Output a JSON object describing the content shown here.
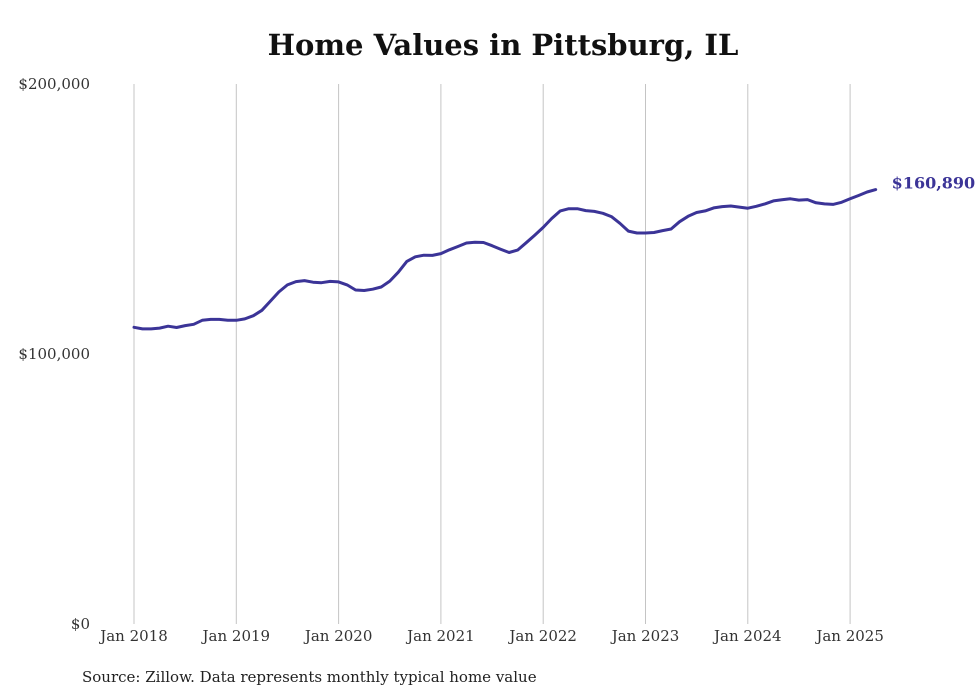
{
  "chart_data": {
    "type": "line",
    "title": "Home Values in Pittsburg, IL",
    "xlabel": "",
    "ylabel": "",
    "x_tick_labels": [
      "Jan 2018",
      "Jan 2019",
      "Jan 2020",
      "Jan 2021",
      "Jan 2022",
      "Jan 2023",
      "Jan 2024",
      "Jan 2025"
    ],
    "y_tick_labels": [
      "$0",
      "$100,000",
      "$200,000"
    ],
    "ylim": [
      0,
      200000
    ],
    "xlim": [
      "2018-01",
      "2025-04"
    ],
    "grid": "vertical",
    "line_color": "#3b3497",
    "series": [
      {
        "dates": [
          "2018-01",
          "2018-02",
          "2018-03",
          "2018-04",
          "2018-05",
          "2018-06",
          "2018-07",
          "2018-08",
          "2018-09",
          "2018-10",
          "2018-11",
          "2018-12",
          "2019-01",
          "2019-02",
          "2019-03",
          "2019-04",
          "2019-05",
          "2019-06",
          "2019-07",
          "2019-08",
          "2019-09",
          "2019-10",
          "2019-11",
          "2019-12",
          "2020-01",
          "2020-02",
          "2020-03",
          "2020-04",
          "2020-05",
          "2020-06",
          "2020-07",
          "2020-08",
          "2020-09",
          "2020-10",
          "2020-11",
          "2020-12",
          "2021-01",
          "2021-02",
          "2021-03",
          "2021-04",
          "2021-05",
          "2021-06",
          "2021-07",
          "2021-08",
          "2021-09",
          "2021-10",
          "2021-11",
          "2021-12",
          "2022-01",
          "2022-02",
          "2022-03",
          "2022-04",
          "2022-05",
          "2022-06",
          "2022-07",
          "2022-08",
          "2022-09",
          "2022-10",
          "2022-11",
          "2022-12",
          "2023-01",
          "2023-02",
          "2023-03",
          "2023-04",
          "2023-05",
          "2023-06",
          "2023-07",
          "2023-08",
          "2023-09",
          "2023-10",
          "2023-11",
          "2023-12",
          "2024-01",
          "2024-02",
          "2024-03",
          "2024-04",
          "2024-05",
          "2024-06",
          "2024-07",
          "2024-08",
          "2024-09",
          "2024-10",
          "2024-11",
          "2024-12",
          "2025-01",
          "2025-02",
          "2025-03",
          "2025-04"
        ],
        "values": [
          109900,
          109300,
          109300,
          109600,
          110300,
          109800,
          110500,
          111000,
          112500,
          112800,
          112800,
          112500,
          112500,
          113000,
          114200,
          116200,
          119600,
          123000,
          125600,
          126800,
          127200,
          126600,
          126400,
          126900,
          126700,
          125600,
          123700,
          123500,
          124000,
          124800,
          127000,
          130300,
          134300,
          136000,
          136600,
          136500,
          137200,
          138600,
          139800,
          141100,
          141400,
          141300,
          140100,
          138800,
          137600,
          138500,
          141200,
          144000,
          146900,
          150200,
          153000,
          153800,
          153800,
          153100,
          152800,
          152100,
          150900,
          148400,
          145500,
          144800,
          144800,
          145000,
          145700,
          146300,
          149000,
          151000,
          152400,
          153000,
          154100,
          154600,
          154800,
          154400,
          154000,
          154700,
          155600,
          156700,
          157100,
          157500,
          157000,
          157200,
          156000,
          155600,
          155400,
          156200,
          157500,
          158700,
          160000,
          160890
        ]
      }
    ],
    "end_label": "$160,890",
    "source_note": "Source: Zillow. Data represents monthly typical home value"
  }
}
